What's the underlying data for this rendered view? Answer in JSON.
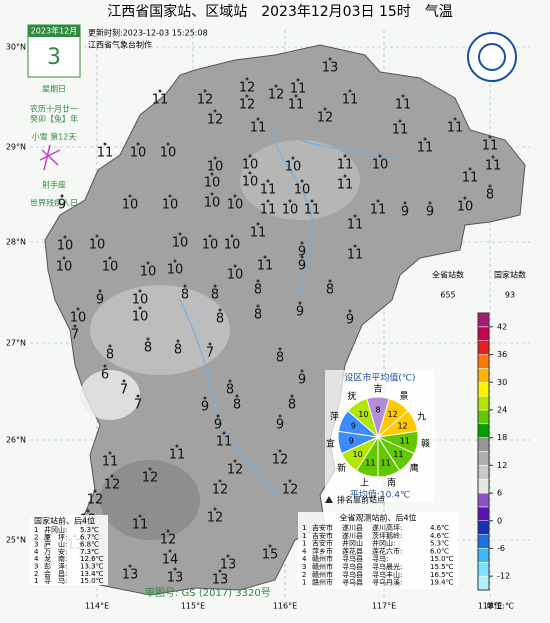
{
  "header": {
    "title": "江西省国家站、区域站　2023年12月03日 15时　气温",
    "update": "更新时刻:2023-12-03 15:25:08",
    "producer": "江西省气象台制作"
  },
  "calendar": {
    "month": "2023年12月",
    "day": "3",
    "weekday": "星期日",
    "lunar": "农历十月廿一",
    "year": "癸卯【兔】年",
    "term": "小雪 第12天",
    "zodiac": "射手座",
    "festival": "世界残疾人日"
  },
  "map": {
    "lat_labels": [
      "30°N",
      "29°N",
      "28°N",
      "27°N",
      "26°N",
      "25°N"
    ],
    "lon_labels": [
      "114°E",
      "115°E",
      "116°E",
      "117°E",
      "118°E"
    ],
    "stations": [
      13,
      12,
      12,
      11,
      12,
      11,
      11,
      12,
      12,
      11,
      12,
      11,
      11,
      11,
      11,
      11,
      11,
      11,
      11,
      8,
      10,
      11,
      10,
      10,
      10,
      10,
      10,
      11,
      10,
      10,
      10,
      11,
      10,
      11,
      9,
      10,
      10,
      10,
      10,
      11,
      10,
      11,
      11,
      9,
      9,
      10,
      10,
      10,
      10,
      10,
      11,
      11,
      9,
      10,
      10,
      10,
      10,
      10,
      11,
      9,
      11,
      9,
      10,
      8,
      8,
      8,
      8,
      10,
      10,
      8,
      8,
      9,
      9,
      7,
      8,
      8,
      8,
      7,
      8,
      6,
      7,
      8,
      9,
      7,
      9,
      8,
      8,
      9,
      9,
      11,
      11,
      11,
      12,
      12,
      12,
      12,
      12,
      12,
      12,
      12,
      11,
      12,
      12,
      13,
      14,
      13,
      15,
      13,
      13,
      13
    ],
    "review_no": "审图号: GS (2017) 3320号",
    "top_station_legend": "排名靠前站点"
  },
  "colorbar": {
    "total_label": "全省站数",
    "total": 655,
    "national_label": "国家站数",
    "national": 93,
    "range": [
      -15,
      45
    ],
    "ticks": [
      42,
      36,
      30,
      24,
      18,
      12,
      6,
      0,
      -6,
      -12
    ],
    "colors": [
      "#b0f0ff",
      "#7de0ff",
      "#3cb8ff",
      "#1e6ee6",
      "#1432b4",
      "#5a14b4",
      "#8c50c8",
      "#e6e6e6",
      "#c8c8c8",
      "#b0b0b0",
      "#969696",
      "#00a000",
      "#64c800",
      "#b4e600",
      "#fff000",
      "#ffb400",
      "#ff7800",
      "#e61e1e",
      "#c80050",
      "#a01e78"
    ],
    "unit": "单位:℃"
  },
  "city_average": {
    "title": "设区市平均值(℃)",
    "cities": [
      "吉",
      "景",
      "九",
      "赣",
      "鹰",
      "南",
      "上",
      "新",
      "宜",
      "萍",
      "抚"
    ],
    "values": [
      8,
      12,
      12,
      11,
      11,
      11,
      11,
      10,
      9,
      9,
      10
    ],
    "colors": [
      "#b48cdc",
      "#ffc800",
      "#ffc800",
      "#64c800",
      "#64c800",
      "#64c800",
      "#64c800",
      "#b4e600",
      "#3c8cff",
      "#3c8cff",
      "#b4e600"
    ],
    "average": "平均值:10.4℃"
  },
  "national_ranking": {
    "title": "国家站前、后4位",
    "rows": [
      [
        "1",
        "井冈山:",
        "5.3℃"
      ],
      [
        "2",
        "厦　坪:",
        "6.7℃"
      ],
      [
        "3",
        "庐　山:",
        "6.8℃"
      ],
      [
        "4",
        "万　安:",
        "7.3℃"
      ],
      [
        "4",
        "龙　南:",
        "12.6℃"
      ],
      [
        "3",
        "彭　泽:",
        "13.3℃"
      ],
      [
        "2",
        "会　昌:",
        "13.4℃"
      ],
      [
        "1",
        "寻　乌:",
        "15.0℃"
      ]
    ]
  },
  "all_ranking": {
    "title": "全省观测站前、后4位",
    "rows": [
      [
        "1",
        "吉安市",
        "遂川县",
        "遂川高坪:",
        "4.6℃"
      ],
      [
        "1",
        "吉安市",
        "遂川县",
        "茨坪鹅岭:",
        "4.6℃"
      ],
      [
        "1",
        "吉安市",
        "井冈山",
        "井冈山:",
        "5.3℃"
      ],
      [
        "4",
        "萍乡市",
        "莲花县",
        "莲花六市:",
        "6.0℃"
      ],
      [
        "4",
        "赣州市",
        "寻乌县",
        "寻乌:",
        "15.0℃"
      ],
      [
        "3",
        "赣州市",
        "寻乌县",
        "寻乌晨光:",
        "15.5℃"
      ],
      [
        "2",
        "赣州市",
        "寻乌县",
        "寻乌丰山:",
        "16.5℃"
      ],
      [
        "1",
        "赣州市",
        "寻乌县",
        "寻乌丹溪:",
        "19.4℃"
      ]
    ]
  }
}
